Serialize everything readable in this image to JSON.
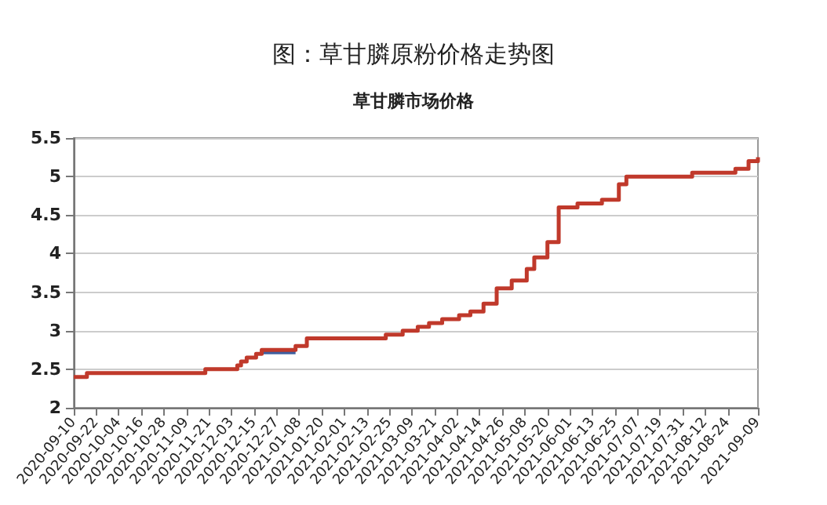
{
  "chart_data": {
    "type": "step",
    "title": "图：草甘膦原粉价格走势图",
    "subtitle": "草甘膦市场价格",
    "series": [
      {
        "color": "#c0392b",
        "x": [
          "2020-09-10",
          "2020-09-17",
          "2020-11-19",
          "2020-12-06",
          "2020-12-08",
          "2020-12-11",
          "2020-12-16",
          "2020-12-19",
          "2021-01-06",
          "2021-01-12",
          "2021-02-23",
          "2021-03-04",
          "2021-03-12",
          "2021-03-18",
          "2021-03-25",
          "2021-04-03",
          "2021-04-09",
          "2021-04-16",
          "2021-04-23",
          "2021-05-01",
          "2021-05-09",
          "2021-05-13",
          "2021-05-20",
          "2021-05-26",
          "2021-06-05",
          "2021-06-18",
          "2021-06-27",
          "2021-07-01",
          "2021-08-05",
          "2021-08-28",
          "2021-09-04",
          "2021-09-09"
        ],
        "values": [
          2.4,
          2.45,
          2.5,
          2.55,
          2.6,
          2.65,
          2.7,
          2.75,
          2.8,
          2.9,
          2.95,
          3.0,
          3.05,
          3.1,
          3.15,
          3.2,
          3.25,
          3.35,
          3.55,
          3.65,
          3.8,
          3.95,
          4.15,
          4.6,
          4.65,
          4.7,
          4.9,
          5.0,
          5.05,
          5.1,
          5.2,
          5.25
        ]
      },
      {
        "color": "#3f5f9f",
        "x": [
          "2020-12-19",
          "2021-01-06"
        ],
        "values": [
          2.72,
          2.72
        ]
      }
    ],
    "xlim": [
      "2020-09-10",
      "2021-09-09"
    ],
    "xticks": [
      "2020-09-10",
      "2020-09-22",
      "2020-10-04",
      "2020-10-16",
      "2020-10-28",
      "2020-11-09",
      "2020-11-21",
      "2020-12-03",
      "2020-12-15",
      "2020-12-27",
      "2021-01-08",
      "2021-01-20",
      "2021-02-01",
      "2021-02-13",
      "2021-02-25",
      "2021-03-09",
      "2021-03-21",
      "2021-04-02",
      "2021-04-14",
      "2021-04-26",
      "2021-05-08",
      "2021-05-20",
      "2021-06-01",
      "2021-06-13",
      "2021-06-25",
      "2021-07-07",
      "2021-07-19",
      "2021-07-31",
      "2021-08-12",
      "2021-08-24",
      "2021-09-09"
    ],
    "ylim": [
      2,
      5.5
    ],
    "yticks": [
      2,
      2.5,
      3,
      3.5,
      4,
      4.5,
      5,
      5.5
    ],
    "grid": "y"
  }
}
